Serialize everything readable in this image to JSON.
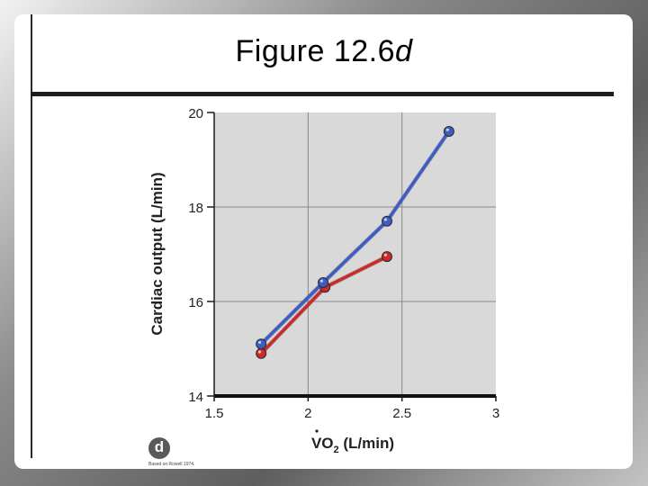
{
  "slide": {
    "title_main": "Figure 12.6",
    "title_suffix": "d",
    "badge_letter": "d",
    "source_note": "Based on Rowell 1974."
  },
  "chart_data": {
    "type": "line",
    "title": "",
    "xlabel_main": "VO",
    "xlabel_sub": "2",
    "xlabel_tail": " (L/min)",
    "ylabel": "Cardiac output (L/min)",
    "xlim": [
      1.5,
      3
    ],
    "ylim": [
      14,
      20
    ],
    "x_ticks": [
      1.5,
      2,
      2.5,
      3
    ],
    "y_ticks": [
      14,
      16,
      18,
      20
    ],
    "grid": true,
    "plot_background": "#d9d9d9",
    "series": [
      {
        "color": "#3d5cc4",
        "x": [
          1.75,
          2.08,
          2.42,
          2.75
        ],
        "y": [
          15.1,
          16.4,
          17.7,
          19.6
        ]
      },
      {
        "color": "#cc2a2a",
        "x": [
          1.75,
          2.09,
          2.42
        ],
        "y": [
          14.9,
          16.3,
          16.95
        ]
      }
    ]
  }
}
